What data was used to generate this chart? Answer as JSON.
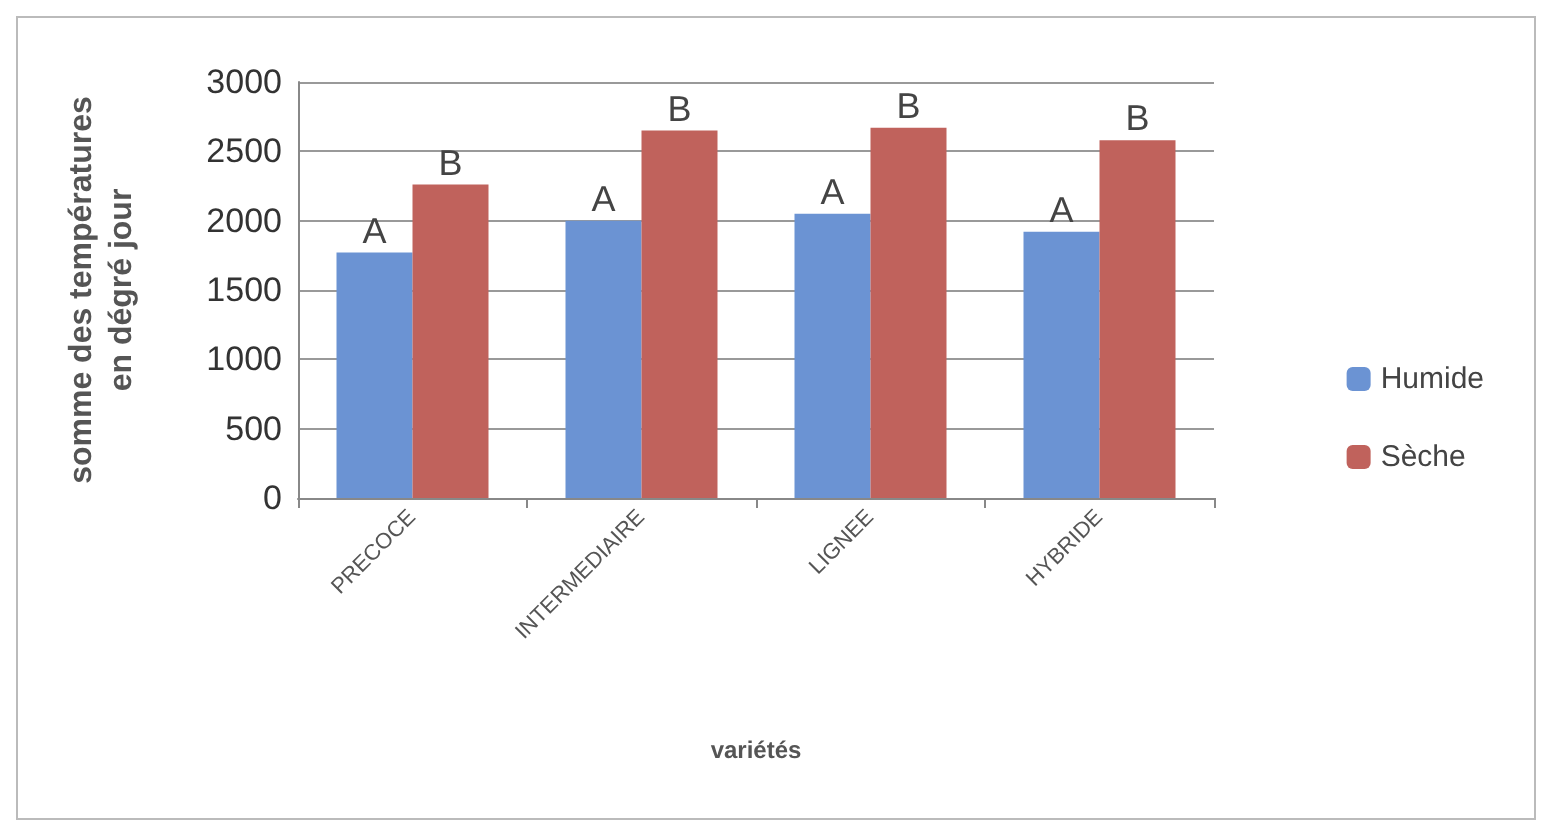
{
  "chart_data": {
    "type": "bar",
    "xlabel": "variétés",
    "ylabel": "somme des températures en dégré jour",
    "categories": [
      "PRECOCE",
      "INTERMEDIAIRE",
      "LIGNEE",
      "HYBRIDE"
    ],
    "series": [
      {
        "name": "Humide",
        "color": "#6b93d3",
        "values": [
          1770,
          2000,
          2050,
          1920
        ],
        "value_labels": [
          "A",
          "A",
          "A",
          "A"
        ]
      },
      {
        "name": "Sèche",
        "color": "#c0625c",
        "values": [
          2260,
          2650,
          2670,
          2580
        ],
        "value_labels": [
          "B",
          "B",
          "B",
          "B"
        ]
      }
    ],
    "ylim": [
      0,
      3000
    ],
    "yticks": [
      0,
      500,
      1000,
      1500,
      2000,
      2500,
      3000
    ],
    "grid": "y",
    "legend": "right"
  }
}
